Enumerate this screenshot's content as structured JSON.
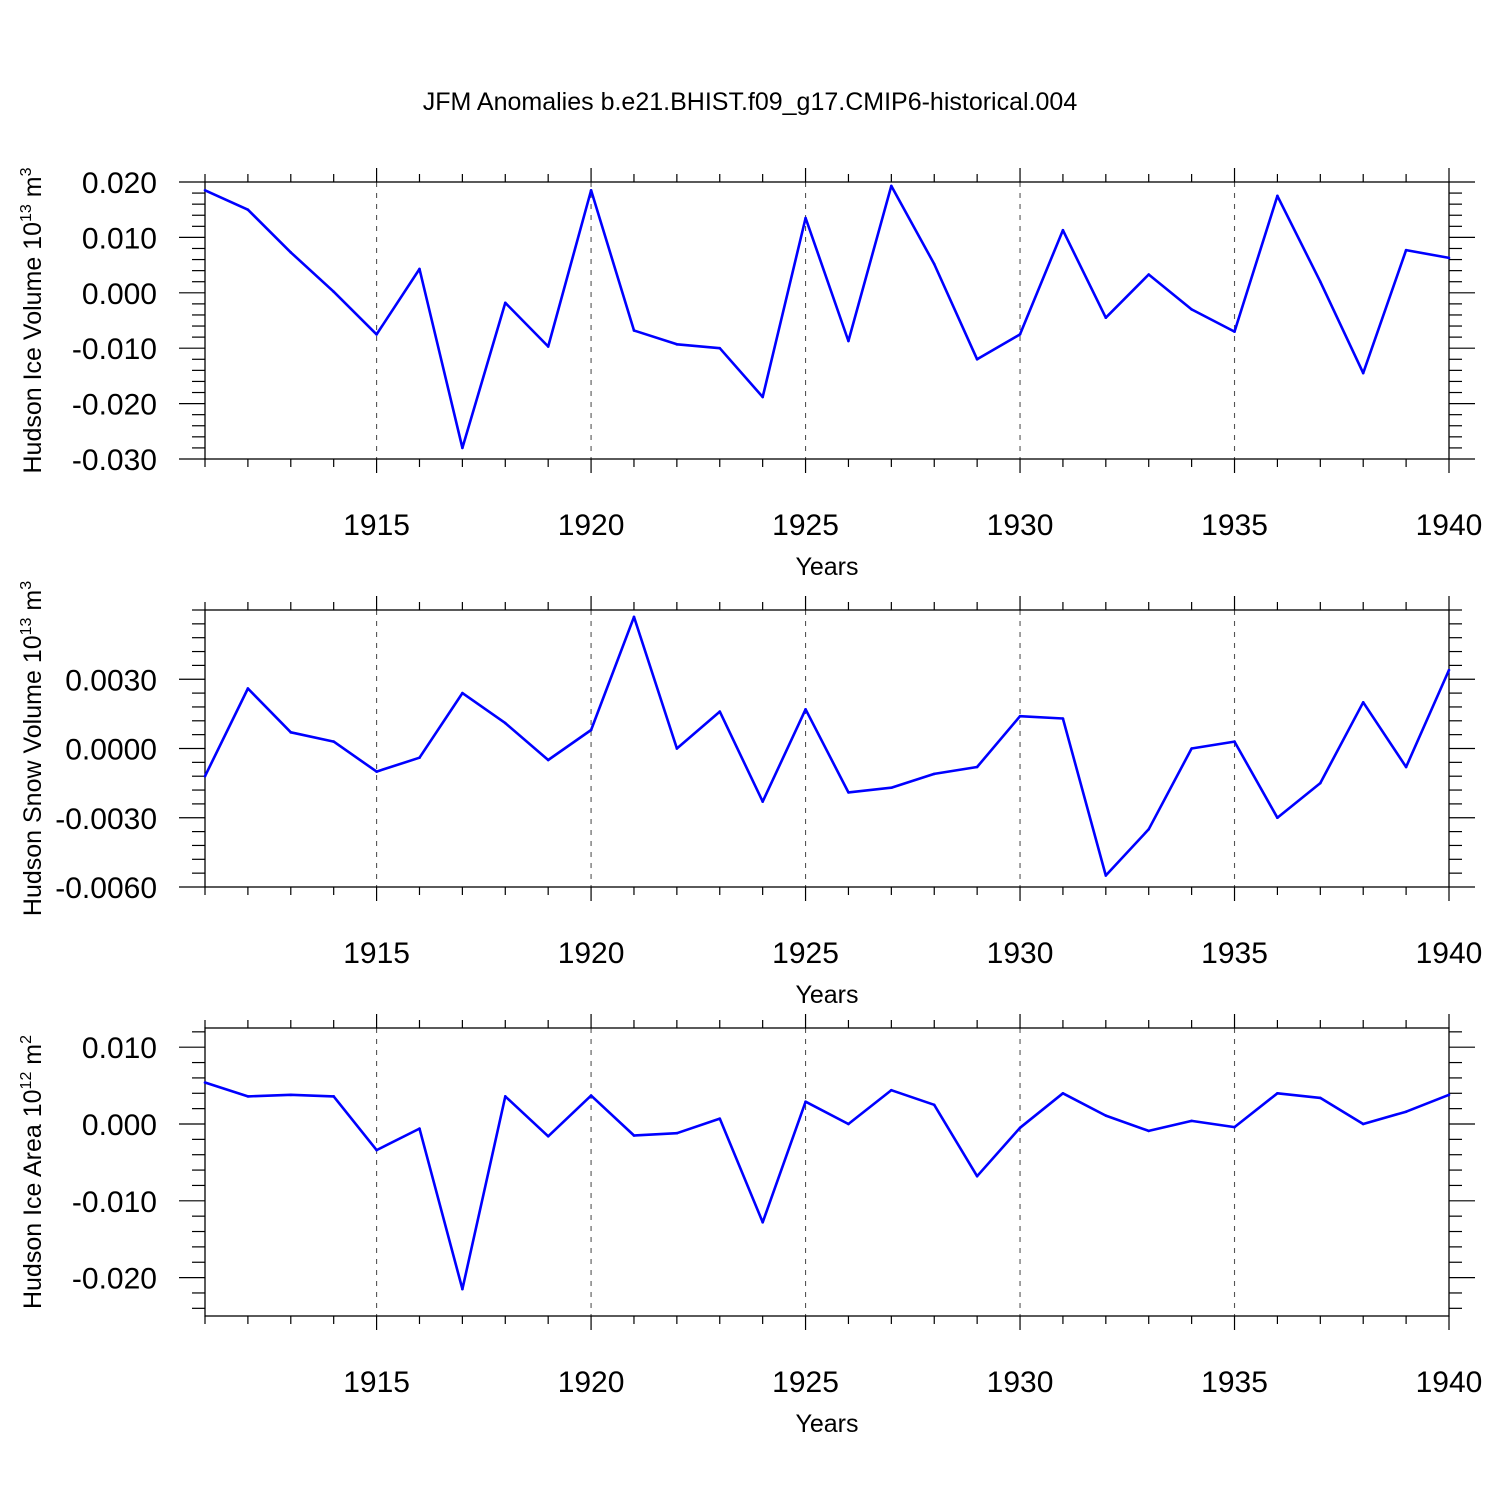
{
  "title": "JFM Anomalies b.e21.BHIST.f09_g17.CMIP6-historical.004",
  "chart_data": [
    {
      "type": "line",
      "ylabel": {
        "main": "Hudson Ice Volume 10",
        "sup": "13",
        "unit": " m",
        "unit_sup": "3"
      },
      "xlabel": "Years",
      "xlim": [
        1911,
        1940
      ],
      "xticks": [
        1915,
        1920,
        1925,
        1930,
        1935,
        1940
      ],
      "ylim": [
        -0.03,
        0.02
      ],
      "yticks": [
        "-0.030",
        "-0.020",
        "-0.010",
        "0.000",
        "0.010",
        "0.020"
      ],
      "grid": "x dashed",
      "color": "#0000ff",
      "x": [
        1911,
        1912,
        1913,
        1914,
        1915,
        1916,
        1917,
        1918,
        1919,
        1920,
        1921,
        1922,
        1923,
        1924,
        1925,
        1926,
        1927,
        1928,
        1929,
        1930,
        1931,
        1932,
        1933,
        1934,
        1935,
        1936,
        1937,
        1938,
        1939,
        1940
      ],
      "values": [
        0.0185,
        0.015,
        0.0073,
        0.0002,
        -0.0075,
        0.0043,
        -0.028,
        -0.0018,
        -0.0097,
        0.0185,
        -0.0068,
        -0.0093,
        -0.01,
        -0.0188,
        0.0135,
        -0.0087,
        0.0193,
        0.0052,
        -0.012,
        -0.0075,
        0.0113,
        -0.0045,
        0.0033,
        -0.003,
        -0.007,
        0.0175,
        0.002,
        -0.0145,
        0.0077,
        0.0063
      ]
    },
    {
      "type": "line",
      "ylabel": {
        "main": "Hudson Snow Volume 10",
        "sup": "13",
        "unit": " m",
        "unit_sup": "3"
      },
      "xlabel": "Years",
      "xlim": [
        1911,
        1940
      ],
      "xticks": [
        1915,
        1920,
        1925,
        1930,
        1935,
        1940
      ],
      "ylim": [
        -0.006,
        0.006
      ],
      "yticks": [
        "-0.0060",
        "-0.0030",
        "0.0000",
        "0.0030"
      ],
      "grid": "x dashed",
      "color": "#0000ff",
      "x": [
        1911,
        1912,
        1913,
        1914,
        1915,
        1916,
        1917,
        1918,
        1919,
        1920,
        1921,
        1922,
        1923,
        1924,
        1925,
        1926,
        1927,
        1928,
        1929,
        1930,
        1931,
        1932,
        1933,
        1934,
        1935,
        1936,
        1937,
        1938,
        1939,
        1940
      ],
      "values": [
        -0.0012,
        0.0026,
        0.0007,
        0.0003,
        -0.001,
        -0.0004,
        0.0024,
        0.0011,
        -0.0005,
        0.0008,
        0.0057,
        0.0,
        0.0016,
        -0.0023,
        0.0017,
        -0.0019,
        -0.0017,
        -0.0011,
        -0.0008,
        0.0014,
        0.0013,
        -0.0055,
        -0.0035,
        0.0,
        0.0003,
        -0.003,
        -0.0015,
        0.002,
        -0.0008,
        0.0034
      ]
    },
    {
      "type": "line",
      "ylabel": {
        "main": "Hudson Ice Area 10",
        "sup": "12",
        "unit": " m",
        "unit_sup": "2"
      },
      "xlabel": "Years",
      "xlim": [
        1911,
        1940
      ],
      "xticks": [
        1915,
        1920,
        1925,
        1930,
        1935,
        1940
      ],
      "ylim": [
        -0.025,
        0.0125
      ],
      "yticks": [
        "-0.020",
        "-0.010",
        "0.000",
        "0.010"
      ],
      "grid": "x dashed",
      "color": "#0000ff",
      "x": [
        1911,
        1912,
        1913,
        1914,
        1915,
        1916,
        1917,
        1918,
        1919,
        1920,
        1921,
        1922,
        1923,
        1924,
        1925,
        1926,
        1927,
        1928,
        1929,
        1930,
        1931,
        1932,
        1933,
        1934,
        1935,
        1936,
        1937,
        1938,
        1939,
        1940
      ],
      "values": [
        0.0054,
        0.0036,
        0.0038,
        0.0036,
        -0.0034,
        -0.0006,
        -0.0215,
        0.0036,
        -0.0016,
        0.0037,
        -0.0015,
        -0.0012,
        0.0007,
        -0.0128,
        0.0029,
        0.0,
        0.0044,
        0.0025,
        -0.0068,
        -0.0005,
        0.004,
        0.0011,
        -0.0009,
        0.0004,
        -0.0004,
        0.004,
        0.0034,
        0.0,
        0.0016,
        0.0038
      ]
    }
  ]
}
